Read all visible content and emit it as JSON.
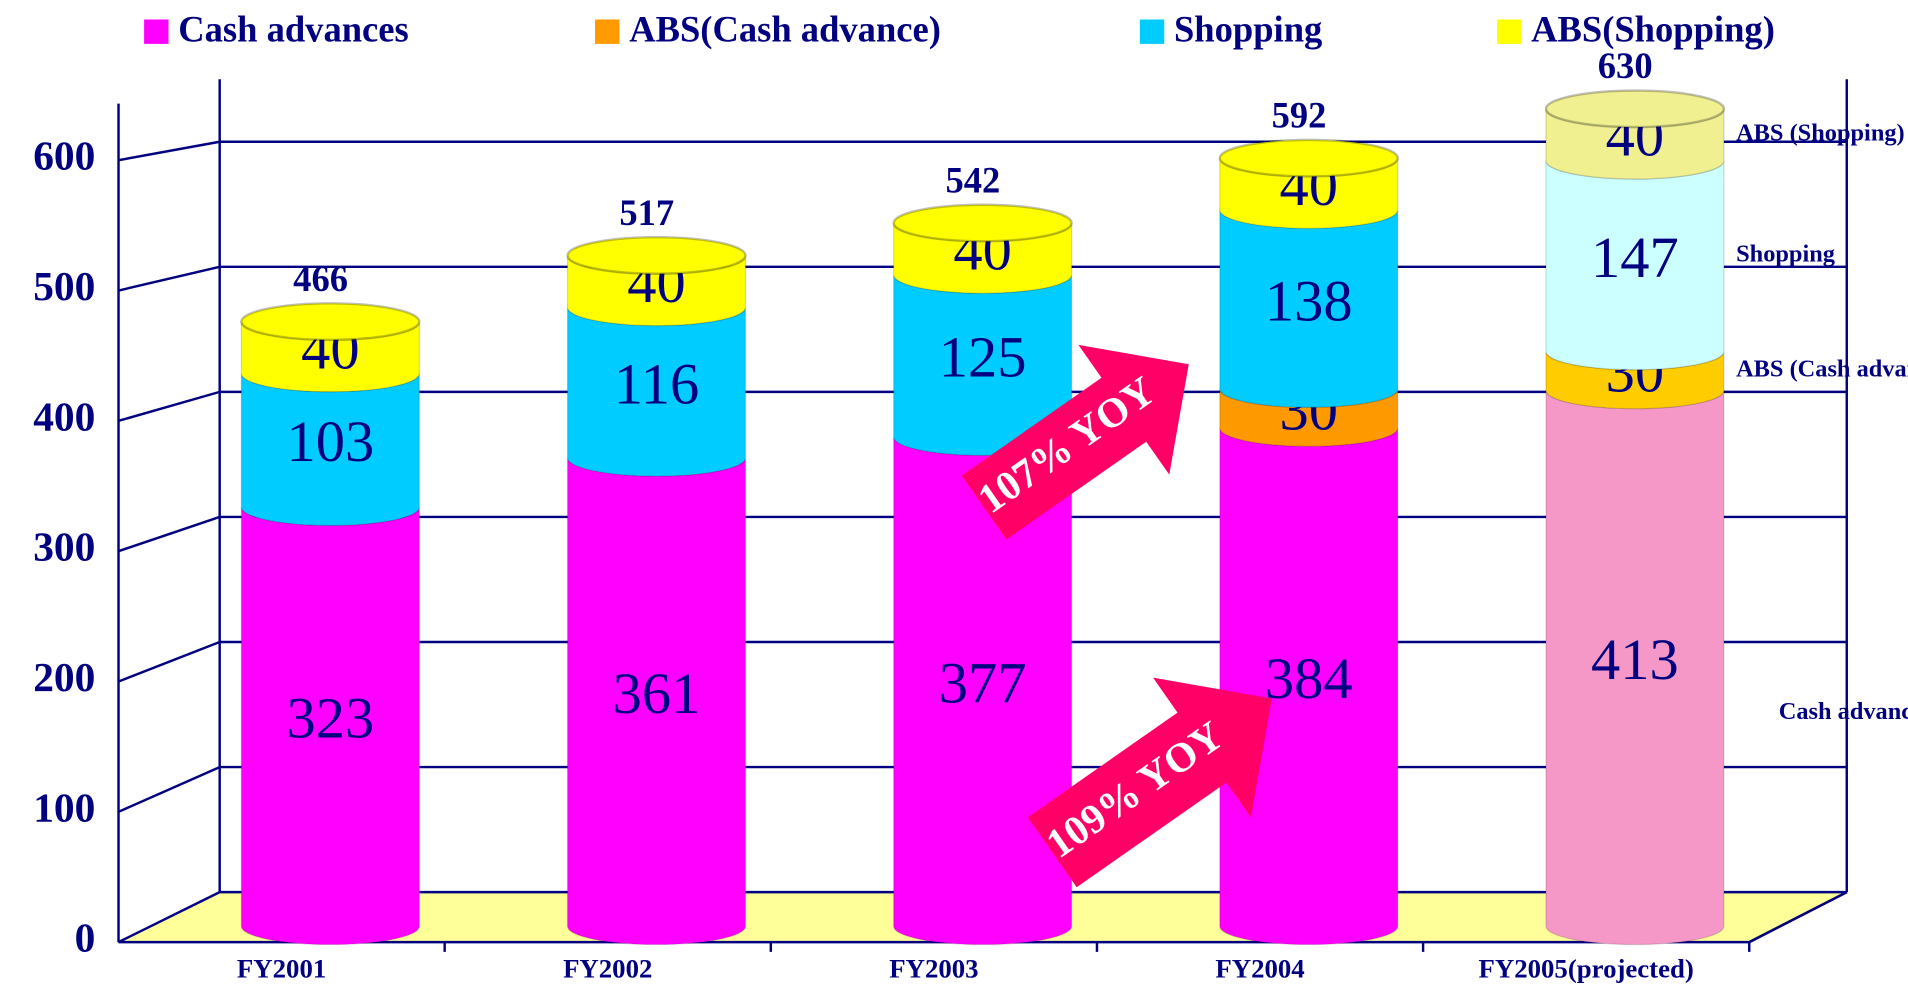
{
  "chart_data": {
    "type": "bar3d_stacked",
    "categories": [
      "FY2001",
      "FY2002",
      "FY2003",
      "FY2004",
      "FY2005(projected)"
    ],
    "series": [
      {
        "name": "Cash advances",
        "color": "#ff00ff",
        "colors": [
          "#ff00ff",
          "#ff00ff",
          "#ff00ff",
          "#ff00ff",
          "#f598c8"
        ],
        "values": [
          323,
          361,
          377,
          384,
          413
        ]
      },
      {
        "name": "ABS(Cash advance)",
        "color": "#ff9900",
        "colors": [
          "#ff9900",
          "#ff9900",
          "#ff9900",
          "#ff9900",
          "#ffcc00"
        ],
        "values": [
          null,
          null,
          null,
          30,
          30
        ]
      },
      {
        "name": "Shopping",
        "color": "#00ccff",
        "colors": [
          "#00ccff",
          "#00ccff",
          "#00ccff",
          "#00ccff",
          "#ccffff"
        ],
        "values": [
          103,
          116,
          125,
          138,
          147
        ]
      },
      {
        "name": "ABS(Shopping)",
        "color": "#ffff00",
        "colors": [
          "#ffff00",
          "#ffff00",
          "#ffff00",
          "#ffff00",
          "#f0f090"
        ],
        "values": [
          40,
          40,
          40,
          40,
          40
        ]
      }
    ],
    "totals": [
      466,
      517,
      542,
      592,
      630
    ],
    "side_labels": [
      "Cash advances",
      "ABS (Cash advances)",
      "Shopping",
      "ABS (Shopping)"
    ],
    "annotations": [
      "107% YOY",
      "109% YOY"
    ],
    "ylim": [
      0,
      650
    ],
    "yticks": [
      0,
      100,
      200,
      300,
      400,
      500,
      600
    ],
    "grid": true
  }
}
